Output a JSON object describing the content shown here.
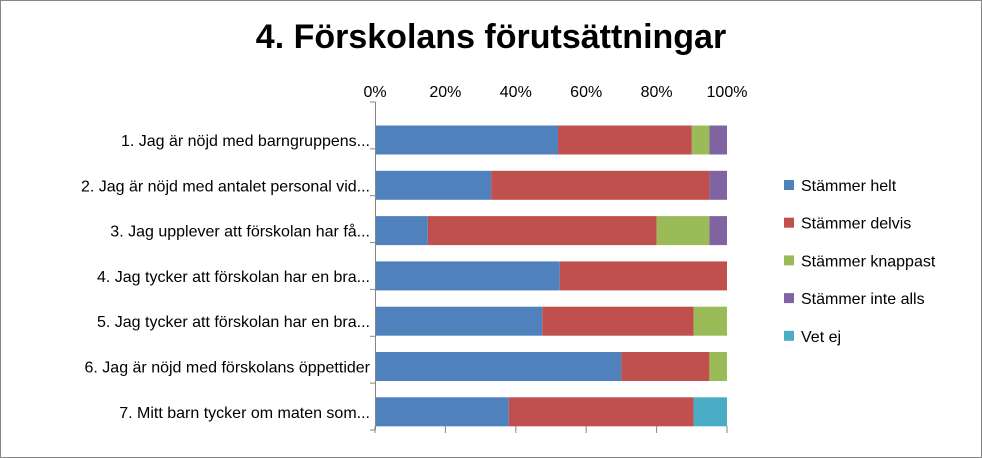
{
  "chart_data": {
    "type": "bar",
    "orientation": "horizontal",
    "stacked": "percent",
    "title": "4. Förskolans förutsättningar",
    "xlabel": "",
    "ylabel": "",
    "xlim": [
      0,
      100
    ],
    "x_ticks": [
      "0%",
      "20%",
      "40%",
      "60%",
      "80%",
      "100%"
    ],
    "x_axis_position": "top",
    "grid": false,
    "legend_position": "right",
    "categories": [
      "1. Jag är nöjd med barngruppens...",
      "2. Jag är nöjd med antalet personal vid...",
      "3. Jag upplever att förskolan har få...",
      "4. Jag tycker att förskolan har en bra...",
      "5. Jag tycker att förskolan har en bra...",
      "6. Jag är nöjd med förskolans öppettider",
      "7. Mitt barn tycker om maten som..."
    ],
    "series": [
      {
        "name": "Stämmer helt",
        "color": "#4F81BD",
        "values": [
          52,
          33,
          15,
          52.5,
          47.5,
          70,
          38
        ]
      },
      {
        "name": "Stämmer delvis",
        "color": "#C0504D",
        "values": [
          38,
          62,
          65,
          47.5,
          43,
          25,
          52.5
        ]
      },
      {
        "name": "Stämmer knappast",
        "color": "#9BBB59",
        "values": [
          5,
          0,
          15,
          0,
          9.5,
          5,
          0
        ]
      },
      {
        "name": "Stämmer inte alls",
        "color": "#8064A2",
        "values": [
          5,
          5,
          5,
          0,
          0,
          0,
          0
        ]
      },
      {
        "name": "Vet ej",
        "color": "#4BACC6",
        "values": [
          0,
          0,
          0,
          0,
          0,
          0,
          9.5
        ]
      }
    ]
  }
}
